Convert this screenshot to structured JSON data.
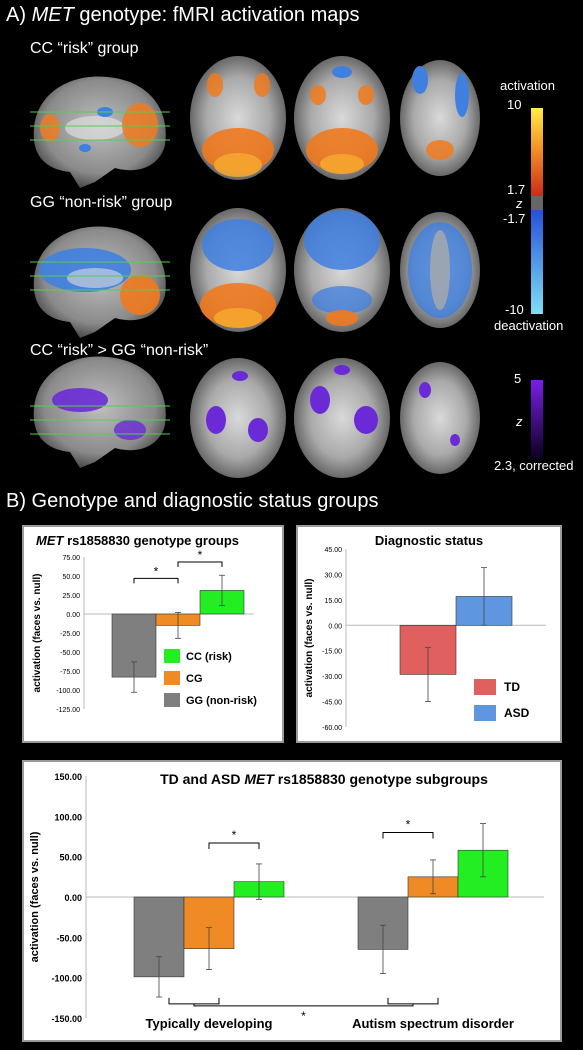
{
  "panel_a": {
    "title_prefix": "A) ",
    "title_italic": "MET",
    "title_suffix": " genotype: fMRI activation maps",
    "row1_label": "CC “risk” group",
    "row2_label": "GG “non-risk” group",
    "row3_label": "CC “risk” > GG “non-risk”",
    "colorbar1": {
      "top_label": "activation",
      "max": "10",
      "pos_thresh": "1.7",
      "z": "z",
      "neg_thresh": "-1.7",
      "min": "-10",
      "bottom_label": "deactivation"
    },
    "colorbar2": {
      "max": "5",
      "z": "z",
      "min": "2.3, corrected"
    },
    "colors": {
      "activation": "#f07a1e",
      "deactivation": "#3f7fe0",
      "contrast": "#6a2bd6"
    }
  },
  "panel_b": {
    "title": "B) Genotype and diagnostic status groups"
  },
  "chart_data": [
    {
      "type": "bar",
      "title_italic": "MET",
      "title_rest": " rs1858830 genotype groups",
      "ylabel": "activation (faces vs. null)",
      "ylim": [
        -125,
        75
      ],
      "yticks": [
        "75.00",
        "50.00",
        "25.00",
        "0.00",
        "-25.00",
        "-50.00",
        "-75.00",
        "-100.00",
        "-125.00"
      ],
      "categories": [
        "GG (non-risk)",
        "CG",
        "CC (risk)"
      ],
      "values": [
        -83,
        -15,
        31
      ],
      "errors": [
        20,
        17,
        20
      ],
      "colors": [
        "#7f7f7f",
        "#f08a24",
        "#22ee22"
      ],
      "legend": [
        "CC (risk)",
        "CG",
        "GG (non-risk)"
      ],
      "significance": [
        "*",
        "*"
      ]
    },
    {
      "type": "bar",
      "title": "Diagnostic status",
      "ylabel": "activation (faces vs. null)",
      "ylim": [
        -60,
        45
      ],
      "yticks": [
        "45.00",
        "30.00",
        "15.00",
        "0.00",
        "-15.00",
        "-30.00",
        "-45.00",
        "-60.00"
      ],
      "categories": [
        "TD",
        "ASD"
      ],
      "values": [
        -29,
        17
      ],
      "errors": [
        16,
        17
      ],
      "colors": [
        "#e06060",
        "#5f96e0"
      ],
      "legend": [
        "TD",
        "ASD"
      ]
    },
    {
      "type": "bar",
      "title_pre": "TD and ASD ",
      "title_italic": "MET",
      "title_post": " rs1858830 genotype subgroups",
      "ylabel": "activation (faces vs. null)",
      "ylim": [
        -150,
        150
      ],
      "yticks": [
        "150.00",
        "100.00",
        "50.00",
        "0.00",
        "-50.00",
        "-100.00",
        "-150.00"
      ],
      "groups": [
        "Typically developing",
        "Autism spectrum disorder"
      ],
      "series": [
        {
          "values": [
            -99,
            -65
          ],
          "errors": [
            25,
            30
          ],
          "color": "#7f7f7f"
        },
        {
          "values": [
            -64,
            25
          ],
          "errors": [
            26,
            21
          ],
          "color": "#f08a24"
        },
        {
          "values": [
            19,
            58
          ],
          "errors": [
            22,
            33
          ],
          "color": "#22ee22"
        }
      ],
      "significance": [
        "*",
        "*",
        "*"
      ]
    }
  ]
}
